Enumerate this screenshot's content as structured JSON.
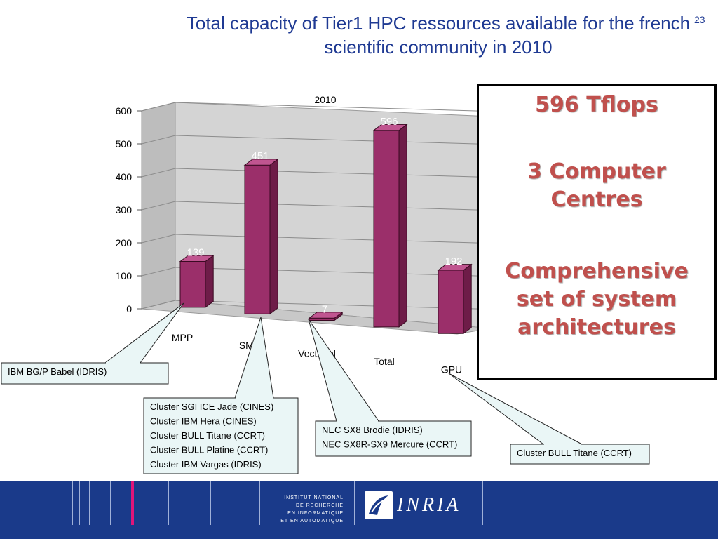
{
  "slide": {
    "title": "Total capacity of Tier1 HPC ressources available for the french scientific community in 2010",
    "number": "23"
  },
  "chart_data": {
    "type": "bar",
    "title": "2010",
    "categories": [
      "MPP",
      "SMP",
      "Vectoriel",
      "Total",
      "GPU"
    ],
    "values": [
      139,
      451,
      7,
      596,
      192
    ],
    "data_labels": [
      "139",
      "451",
      "7",
      "596",
      "192"
    ],
    "ylim": [
      0,
      600
    ],
    "yticks": [
      "0",
      "100",
      "200",
      "300",
      "400",
      "500",
      "600"
    ],
    "grid": true,
    "style": "3d-column",
    "bar_color": "#9b2f6a"
  },
  "callouts": [
    {
      "lines": [
        "IBM BG/P Babel (IDRIS)"
      ]
    },
    {
      "lines": [
        "Cluster SGI ICE Jade (CINES)",
        "Cluster IBM Hera (CINES)",
        "Cluster BULL Titane (CCRT)",
        "Cluster BULL Platine (CCRT)",
        "Cluster IBM Vargas (IDRIS)"
      ]
    },
    {
      "lines": [
        "NEC SX8 Brodie (IDRIS)",
        "NEC SX8R-SX9 Mercure (CCRT)"
      ]
    },
    {
      "lines": [
        "Cluster BULL Titane (CCRT)"
      ]
    }
  ],
  "info_box": {
    "line1": "596 Tflops",
    "line2": "3 Computer Centres",
    "line3": "Comprehensive set of system architectures",
    "color": "#c0504d"
  },
  "footer": {
    "institute": "INSTITUT NATIONAL DE RECHERCHE EN INFORMATIQUE ET EN AUTOMATIQUE",
    "institute_lines": [
      "INSTITUT NATIONAL",
      "DE RECHERCHE",
      "EN INFORMATIQUE",
      "ET EN AUTOMATIQUE"
    ],
    "wordmark": "INRIA",
    "background": "#1a3a8a",
    "accent": "#e0157a",
    "logo_icon": "inria-logo-icon"
  }
}
